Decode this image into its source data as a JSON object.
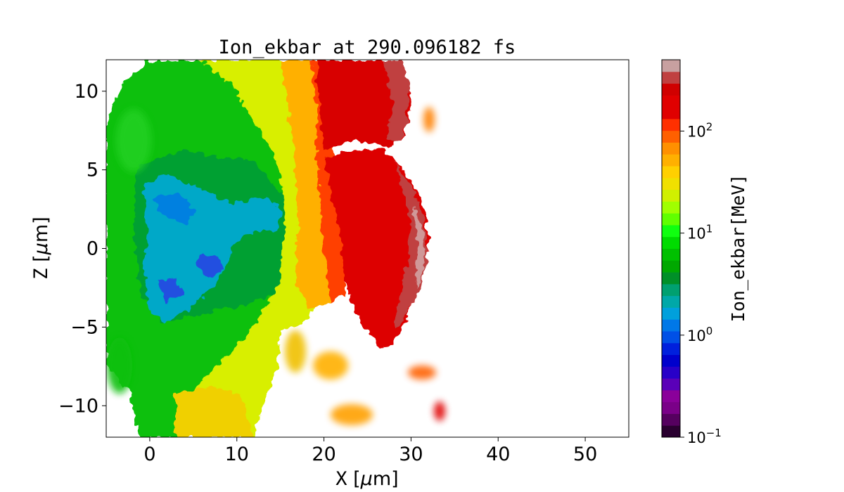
{
  "chart_data": {
    "type": "heatmap",
    "title": "Ion_ekbar at 290.096182 fs",
    "xlabel": "X [μm]",
    "ylabel": "Z [μm]",
    "xlim": [
      -5,
      55
    ],
    "ylim": [
      -12,
      12
    ],
    "x_ticks": [
      {
        "value": 0,
        "label": "0"
      },
      {
        "value": 10,
        "label": "10"
      },
      {
        "value": 20,
        "label": "20"
      },
      {
        "value": 30,
        "label": "30"
      },
      {
        "value": 40,
        "label": "40"
      },
      {
        "value": 50,
        "label": "50"
      }
    ],
    "y_ticks": [
      {
        "value": 10,
        "label": "10"
      },
      {
        "value": 5,
        "label": "5"
      },
      {
        "value": 0,
        "label": "0"
      },
      {
        "value": -5,
        "label": "−5"
      },
      {
        "value": -10,
        "label": "−10"
      }
    ],
    "colorbar": {
      "label": "Ion_ekbar[MeV]",
      "scale": "log",
      "range": [
        0.1,
        500
      ],
      "ticks": [
        {
          "value": 0.1,
          "base": "10",
          "exp": "−1"
        },
        {
          "value": 1,
          "base": "10",
          "exp": "0"
        },
        {
          "value": 10,
          "base": "10",
          "exp": "1"
        },
        {
          "value": 100,
          "base": "10",
          "exp": "2"
        }
      ],
      "colors": [
        "#2a0030",
        "#55005f",
        "#7a0088",
        "#8a009a",
        "#5a00b8",
        "#2800c8",
        "#0000cc",
        "#0020dd",
        "#0050e6",
        "#0078e8",
        "#00a0dc",
        "#00a8a8",
        "#00a070",
        "#009028",
        "#00a800",
        "#00c000",
        "#00dc00",
        "#10ff10",
        "#60ff00",
        "#a0ff00",
        "#d0f000",
        "#f0e000",
        "#ffd000",
        "#ffb000",
        "#ff9000",
        "#ff6000",
        "#ff3000",
        "#e00000",
        "#e00000",
        "#d00000",
        "#c04040",
        "#c8a0a0"
      ]
    },
    "regions": [
      {
        "name": "low-energy core (blue)",
        "x": [
          0,
          16
        ],
        "z": [
          -6,
          6
        ],
        "ekbar_MeV": [
          0.3,
          3
        ]
      },
      {
        "name": "green plasma",
        "x": [
          -5,
          17
        ],
        "z": [
          -12,
          12
        ],
        "ekbar_MeV": [
          3,
          20
        ]
      },
      {
        "name": "yellow-orange shell",
        "x": [
          15,
          22
        ],
        "z": [
          -12,
          12
        ],
        "ekbar_MeV": [
          20,
          100
        ]
      },
      {
        "name": "accelerated ion front (red)",
        "x": [
          21,
          32
        ],
        "z": [
          -6.5,
          12
        ],
        "ekbar_MeV": [
          150,
          500
        ]
      }
    ],
    "grid": false
  }
}
